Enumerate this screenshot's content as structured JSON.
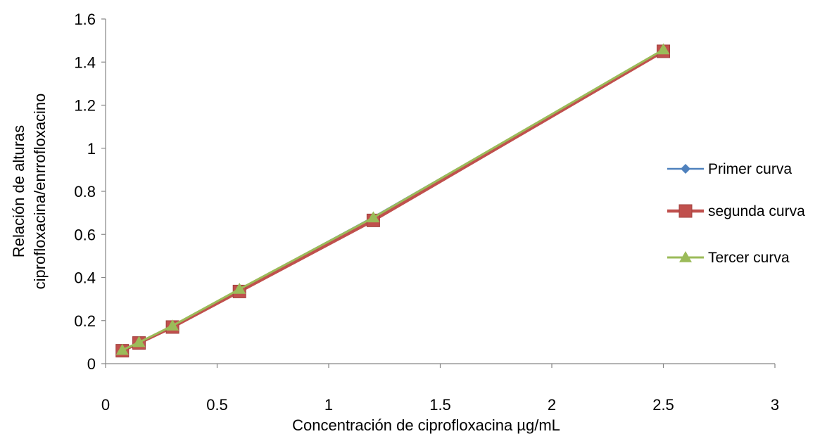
{
  "chart_data": {
    "type": "line",
    "title": "",
    "xlabel": "Concentración de ciprofloxacina µg/mL",
    "ylabel_lines": [
      "Relación de alturas",
      "ciprofloxacina/enrrofloxacino"
    ],
    "xlim": [
      0,
      3
    ],
    "ylim": [
      0,
      1.6
    ],
    "x_ticks": [
      0,
      0.5,
      1,
      1.5,
      2,
      2.5,
      3
    ],
    "x_tick_labels": [
      "0",
      "0.5",
      "1",
      "1.5",
      "2",
      "2.5",
      "3"
    ],
    "y_ticks": [
      0,
      0.2,
      0.4,
      0.6,
      0.8,
      1,
      1.2,
      1.4,
      1.6
    ],
    "y_tick_labels": [
      "0",
      "0.2",
      "0.4",
      "0.6",
      "0.8",
      "1",
      "1.2",
      "1.4",
      "1.6"
    ],
    "grid": false,
    "legend_position": "right",
    "x": [
      0.075,
      0.15,
      0.3,
      0.6,
      1.2,
      2.5
    ],
    "series": [
      {
        "name": "Primer curva",
        "marker": "diamond",
        "color": "#4F81BD",
        "values": [
          0.062,
          0.098,
          0.175,
          0.345,
          0.68,
          1.455
        ]
      },
      {
        "name": "segunda curva",
        "marker": "square",
        "color": "#C0504D",
        "values": [
          0.06,
          0.096,
          0.17,
          0.335,
          0.665,
          1.45
        ]
      },
      {
        "name": "Tercer curva",
        "marker": "triangle",
        "color": "#9BBB59",
        "values": [
          0.063,
          0.099,
          0.176,
          0.346,
          0.678,
          1.458
        ]
      }
    ]
  }
}
